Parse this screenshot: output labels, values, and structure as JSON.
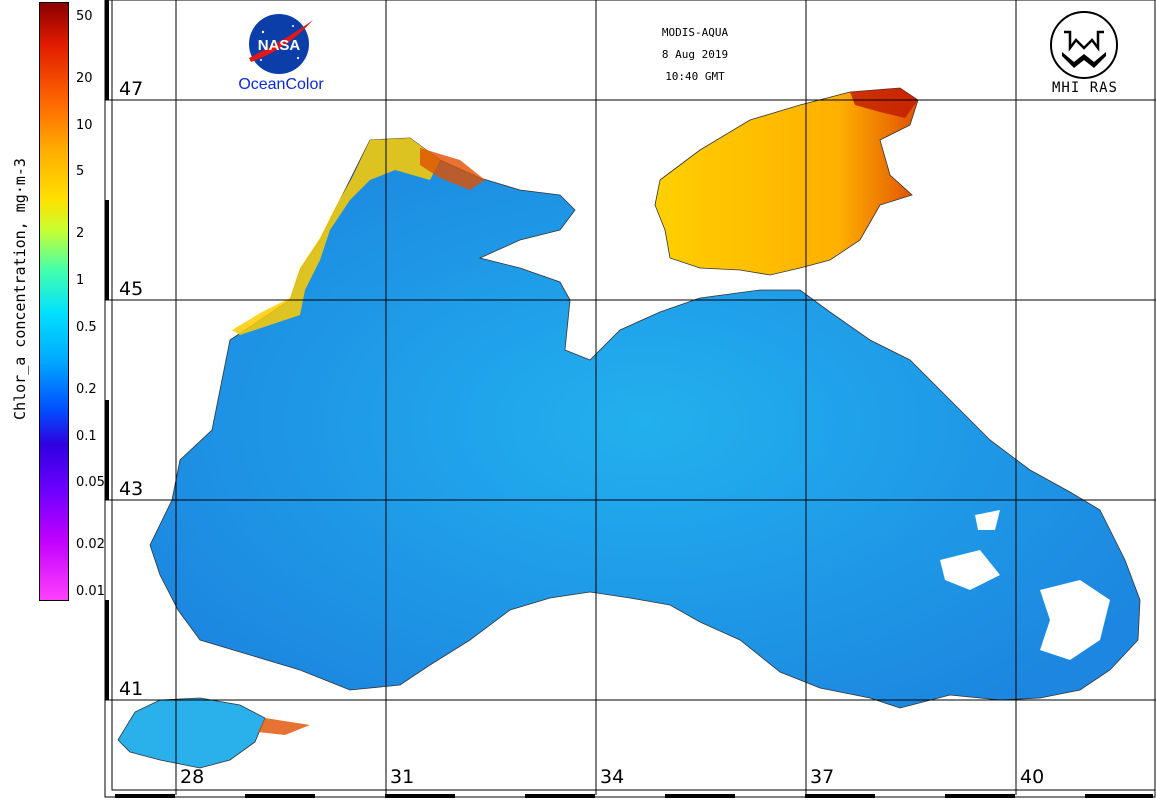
{
  "header": {
    "sensor": "MODIS-AQUA",
    "date": "8 Aug 2019",
    "time": "10:40 GMT"
  },
  "logos": {
    "left_logo_text": "NASA",
    "left_caption": "OceanColor",
    "right_caption": "MHI RAS"
  },
  "colorbar": {
    "title": "Chlor_a concentration, mg·m-3",
    "ticks": [
      "50",
      "20",
      "10",
      "5",
      "2",
      "1",
      "0.5",
      "0.2",
      "0.1",
      "0.05",
      "0.02",
      "0.01"
    ],
    "colors_top_to_bottom": [
      "#8a0000",
      "#e21b00",
      "#ff6a00",
      "#ffb000",
      "#ffe000",
      "#c8ff30",
      "#40ffb0",
      "#00e0ff",
      "#00a8ff",
      "#0050ff",
      "#3000e0",
      "#7000ff",
      "#c000ff",
      "#ff40ff"
    ]
  },
  "grid": {
    "latitudes": [
      "47",
      "45",
      "43",
      "41"
    ],
    "longitudes": [
      "28",
      "31",
      "34",
      "37",
      "40"
    ]
  },
  "colors": {
    "sea_low": "#1f8fe8",
    "sea_mid": "#22c8e8",
    "coastal_high": "#ffcc00",
    "bloom_high": "#e04000",
    "land": "#ffffff",
    "grid": "#000000"
  }
}
